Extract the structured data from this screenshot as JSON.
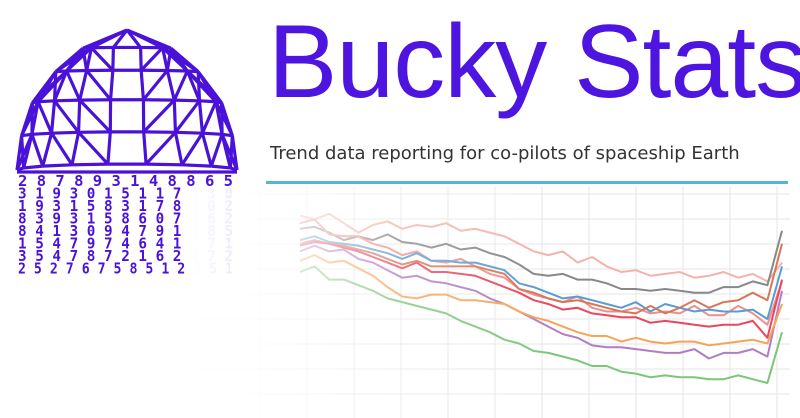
{
  "brand": {
    "title": "Bucky Stats",
    "tagline": "Trend data reporting for co-pilots of spaceship Earth",
    "title_color": "#4E14E0",
    "divider_color": "#55B5D3"
  },
  "logo": {
    "icon": "geodesic-dome-icon",
    "color": "#4A12D8",
    "digit_rows": [
      "2  8 7 8   9 3   1 4 8 8 6 5",
      "3 1 9 3 0 1 5 1 1 7 8 3 0",
      "1 9 3 1 5 8 3 1 7 8 3 0 2",
      "8 3 9 3 1 5 8 6 0 7 6 6 2",
      "8 4 1 3 0 9 4 7 9 1 5 8 5",
      "1 5 4 7 9 7 4 6 4 1 7 7 1",
      "3 5 4 7 8 7 2 1 6 2 4 7 2",
      "2 5 2 7 6 7 5 8 5 1 2 6 5 1"
    ]
  },
  "chart_data": {
    "type": "line",
    "grid": true,
    "ylim": [
      0,
      100
    ],
    "x": [
      0,
      1,
      2,
      3,
      4,
      5,
      6,
      7,
      8,
      9,
      10,
      11,
      12,
      13,
      14,
      15,
      16,
      17,
      18,
      19,
      20,
      21,
      22,
      23,
      24,
      25,
      26,
      27,
      28,
      29,
      30,
      31,
      32,
      33
    ],
    "series": [
      {
        "color": "#f4b3aa",
        "values": [
          97,
          95,
          98,
          93,
          88,
          92,
          94,
          90,
          92,
          91,
          93,
          89,
          90,
          88,
          86,
          82,
          78,
          76,
          78,
          72,
          75,
          70,
          67,
          68,
          65,
          66,
          67,
          64,
          65,
          67,
          64,
          66,
          62,
          72
        ]
      },
      {
        "color": "#888888",
        "values": [
          90,
          91,
          88,
          84,
          86,
          84,
          87,
          83,
          82,
          80,
          82,
          79,
          80,
          77,
          75,
          71,
          66,
          65,
          66,
          63,
          63,
          61,
          58,
          58,
          57,
          58,
          57,
          56,
          56,
          59,
          59,
          62,
          60,
          89
        ]
      },
      {
        "color": "#f08f8a",
        "values": [
          93,
          95,
          87,
          86,
          86,
          82,
          80,
          76,
          78,
          73,
          72,
          74,
          70,
          66,
          64,
          58,
          55,
          53,
          51,
          54,
          48,
          46,
          46,
          48,
          45,
          46,
          45,
          49,
          44,
          44,
          49,
          45,
          39,
          62
        ]
      },
      {
        "color": "#5b9bd5",
        "values": [
          84,
          86,
          83,
          82,
          81,
          79,
          77,
          74,
          77,
          73,
          73,
          72,
          72,
          70,
          68,
          61,
          59,
          56,
          53,
          54,
          52,
          50,
          48,
          51,
          46,
          50,
          48,
          46,
          47,
          46,
          46,
          47,
          42,
          70
        ]
      },
      {
        "color": "#d4785a",
        "values": [
          82,
          84,
          82,
          81,
          79,
          77,
          74,
          71,
          73,
          70,
          70,
          70,
          70,
          68,
          66,
          58,
          56,
          53,
          51,
          52,
          50,
          48,
          46,
          45,
          49,
          45,
          48,
          52,
          48,
          51,
          52,
          56,
          52,
          82
        ]
      },
      {
        "color": "#e8475f",
        "values": [
          81,
          83,
          82,
          80,
          78,
          75,
          72,
          69,
          72,
          67,
          67,
          66,
          65,
          62,
          59,
          56,
          52,
          50,
          47,
          48,
          45,
          44,
          43,
          43,
          40,
          41,
          40,
          39,
          38,
          39,
          39,
          41,
          32,
          63
        ]
      },
      {
        "color": "#b07cc6",
        "values": [
          78,
          81,
          78,
          79,
          74,
          72,
          68,
          64,
          65,
          62,
          61,
          59,
          57,
          53,
          50,
          46,
          42,
          38,
          34,
          32,
          28,
          27,
          27,
          26,
          25,
          24,
          24,
          26,
          21,
          24,
          24,
          26,
          22,
          57
        ]
      },
      {
        "color": "#f4a55a",
        "values": [
          73,
          76,
          72,
          73,
          69,
          65,
          59,
          54,
          53,
          55,
          55,
          52,
          52,
          51,
          50,
          46,
          43,
          41,
          38,
          35,
          33,
          33,
          30,
          32,
          30,
          29,
          30,
          30,
          28,
          29,
          30,
          31,
          29,
          50
        ]
      },
      {
        "color": "#7cc677",
        "values": [
          67,
          70,
          63,
          63,
          60,
          57,
          53,
          51,
          49,
          47,
          45,
          41,
          38,
          35,
          31,
          29,
          25,
          24,
          22,
          20,
          17,
          17,
          14,
          13,
          11,
          12,
          11,
          11,
          10,
          10,
          12,
          10,
          8,
          35
        ]
      }
    ]
  }
}
